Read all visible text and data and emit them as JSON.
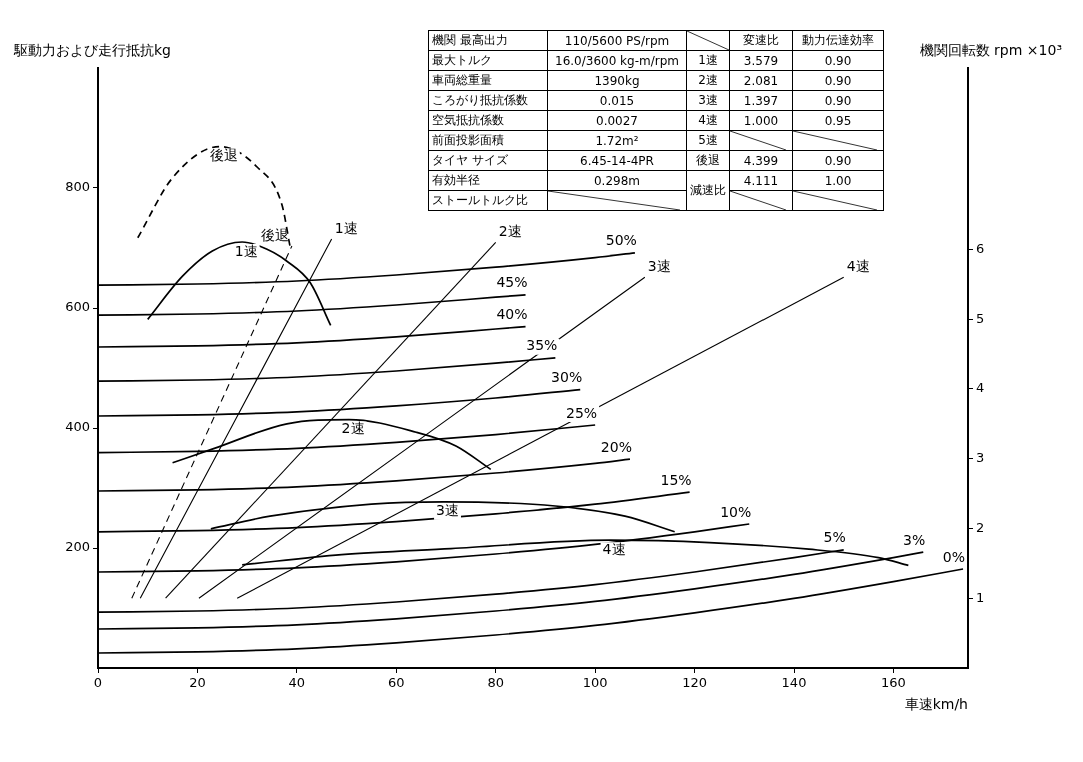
{
  "chart_data": {
    "type": "line",
    "xlabel": "車速km/h",
    "ylabel": "駆動力および走行抵抗kg",
    "y2label": "機関回転数 rpm ×10³",
    "xlim": [
      0,
      175
    ],
    "xticks": [
      0,
      20,
      40,
      60,
      80,
      100,
      120,
      140,
      160
    ],
    "ylim": [
      0,
      1000
    ],
    "yticks": [
      200,
      400,
      600,
      800
    ],
    "y2lim": [
      0,
      8.6
    ],
    "y2ticks": [
      1,
      2,
      3,
      4,
      5,
      6
    ],
    "annotations": [
      "機関 最高出力",
      "110/5600 PS/rpm",
      "変速比",
      "動力伝達効率",
      "最大トルク",
      "16.0/3600 kg-m/rpm",
      "1速",
      "3.579",
      "0.90",
      "車両総重量",
      "1390kg",
      "2速",
      "2.081",
      "0.90",
      "ころがり抵抗係数",
      "0.015",
      "3速",
      "1.397",
      "0.90",
      "空気抵抗係数",
      "0.0027",
      "4速",
      "1.000",
      "0.95",
      "前面投影面積",
      "1.72m²",
      "5速",
      "タイヤ サイズ",
      "6.45-14-4PR",
      "後退",
      "4.399",
      "0.90",
      "有効半径",
      "0.298m",
      "減速比",
      "4.111",
      "1.00",
      "ストールトルク比"
    ],
    "series": [
      {
        "name": "50%",
        "color": "#000000",
        "x": [
          0,
          20,
          40,
          60,
          80,
          100,
          108
        ],
        "values": [
          638,
          640,
          645,
          655,
          668,
          684,
          692
        ]
      },
      {
        "name": "45%",
        "color": "#000000",
        "x": [
          0,
          20,
          40,
          60,
          80,
          86
        ],
        "values": [
          588,
          590,
          595,
          605,
          618,
          622
        ]
      },
      {
        "name": "40%",
        "color": "#000000",
        "x": [
          0,
          20,
          40,
          60,
          80,
          86
        ],
        "values": [
          535,
          537,
          542,
          552,
          565,
          569
        ]
      },
      {
        "name": "35%",
        "color": "#000000",
        "x": [
          0,
          20,
          40,
          60,
          80,
          92
        ],
        "values": [
          478,
          480,
          485,
          495,
          508,
          517
        ]
      },
      {
        "name": "30%",
        "color": "#000000",
        "x": [
          0,
          20,
          40,
          60,
          80,
          97
        ],
        "values": [
          420,
          422,
          427,
          437,
          450,
          464
        ]
      },
      {
        "name": "25%",
        "color": "#000000",
        "x": [
          0,
          20,
          40,
          60,
          80,
          100
        ],
        "values": [
          359,
          361,
          366,
          376,
          389,
          405
        ]
      },
      {
        "name": "20%",
        "color": "#000000",
        "x": [
          0,
          20,
          40,
          60,
          80,
          100,
          107
        ],
        "values": [
          295,
          297,
          302,
          312,
          325,
          341,
          348
        ]
      },
      {
        "name": "15%",
        "color": "#000000",
        "x": [
          0,
          20,
          40,
          60,
          80,
          100,
          119
        ],
        "values": [
          227,
          229,
          234,
          244,
          257,
          273,
          293
        ]
      },
      {
        "name": "10%",
        "color": "#000000",
        "x": [
          0,
          20,
          40,
          60,
          80,
          100,
          120,
          131
        ],
        "values": [
          160,
          162,
          167,
          177,
          190,
          206,
          227,
          240
        ]
      },
      {
        "name": "5%",
        "color": "#000000",
        "x": [
          0,
          20,
          40,
          60,
          80,
          100,
          120,
          140,
          150
        ],
        "values": [
          93,
          95,
          100,
          110,
          123,
          139,
          160,
          184,
          197
        ]
      },
      {
        "name": "3%",
        "color": "#000000",
        "x": [
          0,
          20,
          40,
          60,
          80,
          100,
          120,
          140,
          160,
          166
        ],
        "values": [
          65,
          67,
          72,
          82,
          95,
          111,
          132,
          156,
          184,
          193
        ]
      },
      {
        "name": "0%",
        "color": "#000000",
        "x": [
          0,
          20,
          40,
          60,
          80,
          100,
          120,
          140,
          160,
          174
        ],
        "values": [
          25,
          27,
          32,
          42,
          55,
          71,
          92,
          116,
          144,
          165
        ]
      },
      {
        "name": "1速",
        "color": "#000000",
        "x": [
          10,
          17,
          23,
          29,
          34,
          38,
          42.7,
          46.8
        ],
        "values": [
          581,
          653,
          695,
          710,
          698,
          678,
          642,
          571
        ]
      },
      {
        "name": "後退",
        "color": "#000000",
        "line_style": "dashed",
        "x": [
          8,
          15,
          24.5,
          32,
          37,
          38.6
        ],
        "values": [
          717,
          817,
          869,
          835,
          772,
          704
        ]
      },
      {
        "name": "2速",
        "color": "#000000",
        "x": [
          15,
          23.4,
          38,
          50.5,
          64,
          72,
          79
        ],
        "values": [
          342,
          366,
          407,
          414,
          393,
          370,
          331
        ]
      },
      {
        "name": "3速",
        "color": "#000000",
        "x": [
          22.7,
          34.6,
          55,
          69.5,
          92,
          106,
          116
        ],
        "values": [
          232,
          253,
          273,
          277,
          270,
          253,
          227
        ]
      },
      {
        "name": "4速",
        "color": "#000000",
        "x": [
          29,
          49,
          71,
          103,
          123,
          143,
          157,
          163
        ],
        "values": [
          172,
          189,
          199,
          213,
          209,
          198,
          184,
          171
        ]
      },
      {
        "name": "1速",
        "color": "#000000",
        "axis": "y2",
        "x": [
          8.5,
          47
        ],
        "values": [
          1.0,
          6.15
        ]
      },
      {
        "name": "2速",
        "color": "#000000",
        "axis": "y2",
        "x": [
          13.6,
          80
        ],
        "values": [
          1.0,
          6.1
        ]
      },
      {
        "name": "3速",
        "color": "#000000",
        "axis": "y2",
        "x": [
          20.3,
          110
        ],
        "values": [
          1.0,
          5.6
        ]
      },
      {
        "name": "4速",
        "color": "#000000",
        "axis": "y2",
        "x": [
          28,
          150
        ],
        "values": [
          1.0,
          5.6
        ]
      },
      {
        "name": "後退",
        "color": "#000000",
        "axis": "y2",
        "line_style": "dashed",
        "x": [
          6.8,
          39
        ],
        "values": [
          1.0,
          6.05
        ]
      }
    ]
  }
}
